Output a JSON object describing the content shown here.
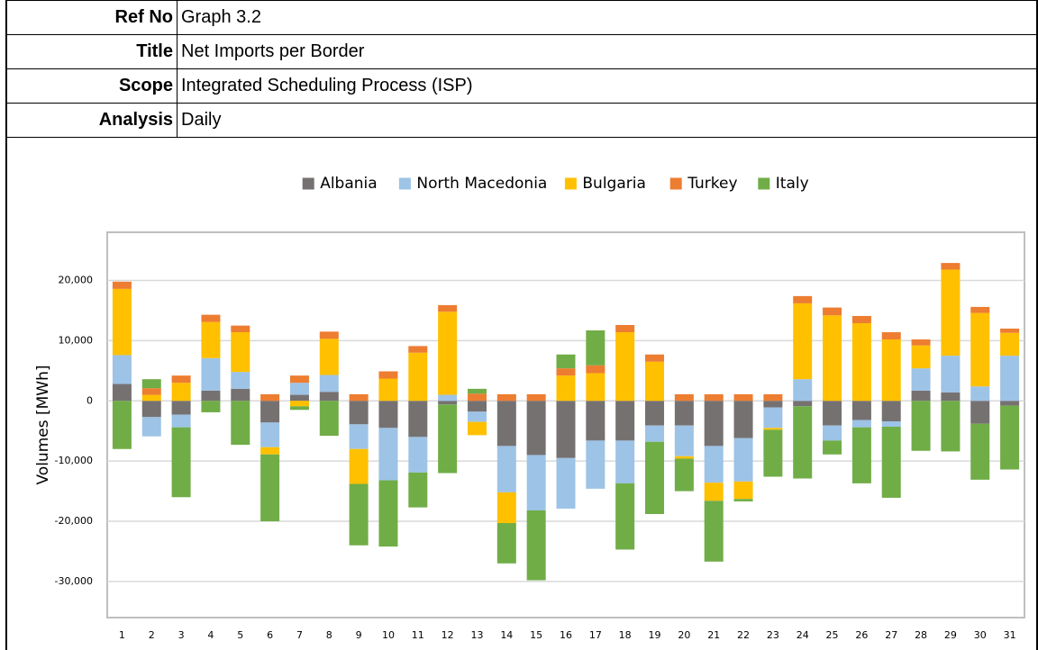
{
  "header": {
    "rows": [
      {
        "label": "Ref No",
        "value": "Graph 3.2"
      },
      {
        "label": "Title",
        "value": "Net Imports per Border"
      },
      {
        "label": "Scope",
        "value": "Integrated Scheduling Process (ISP)"
      },
      {
        "label": "Analysis",
        "value": "Daily"
      }
    ]
  },
  "chart_data": {
    "type": "stacked_bar",
    "y_label": "Volumes [MWh]",
    "categories": [
      "1",
      "2",
      "3",
      "4",
      "5",
      "6",
      "7",
      "8",
      "9",
      "10",
      "11",
      "12",
      "13",
      "14",
      "15",
      "16",
      "17",
      "18",
      "19",
      "20",
      "21",
      "22",
      "23",
      "24",
      "25",
      "26",
      "27",
      "28",
      "29",
      "30",
      "31"
    ],
    "series": [
      {
        "name": "Albania",
        "color": "#767171",
        "values": [
          2800,
          -2700,
          -2300,
          1700,
          2000,
          -3600,
          1000,
          1500,
          -3900,
          -4500,
          -6000,
          -600,
          -1800,
          -7500,
          -9000,
          -9500,
          -6600,
          -6600,
          -4100,
          -4100,
          -7500,
          -6200,
          -1100,
          -900,
          -4100,
          -3200,
          -3400,
          1700,
          1400,
          -3800,
          -800
        ]
      },
      {
        "name": "North Macedonia",
        "color": "#9dc3e6",
        "values": [
          4800,
          -3200,
          -2100,
          5400,
          2800,
          -4100,
          2000,
          2800,
          -4100,
          -8700,
          -5900,
          1000,
          -1700,
          -7700,
          -9200,
          -8400,
          -8000,
          -7100,
          -2700,
          -5100,
          -6100,
          -7200,
          -3400,
          3600,
          -2500,
          -1200,
          -900,
          3700,
          6100,
          2400,
          7500
        ]
      },
      {
        "name": "Bulgaria",
        "color": "#ffc000",
        "values": [
          11000,
          1000,
          3000,
          6000,
          6600,
          -1200,
          -900,
          6000,
          -5800,
          3700,
          8000,
          13800,
          -2200,
          -5100,
          0,
          4200,
          4600,
          11400,
          6500,
          -400,
          -3000,
          -2900,
          -300,
          12600,
          14200,
          12900,
          10200,
          3800,
          14300,
          12200,
          3800
        ]
      },
      {
        "name": "Turkey",
        "color": "#ed7d31",
        "values": [
          1200,
          1100,
          1200,
          1200,
          1100,
          1100,
          1200,
          1200,
          1100,
          1200,
          1100,
          1100,
          1200,
          1100,
          1100,
          1200,
          1300,
          1200,
          1200,
          1100,
          1100,
          1100,
          1100,
          1200,
          1300,
          1200,
          1200,
          1000,
          1100,
          1000,
          700
        ]
      },
      {
        "name": "Italy",
        "color": "#70ad47",
        "values": [
          -8000,
          1500,
          -11600,
          -1900,
          -7300,
          -11100,
          -600,
          -5800,
          -10200,
          -11000,
          -5800,
          -11400,
          800,
          -6700,
          -11600,
          2300,
          5800,
          -11000,
          -12000,
          -5400,
          -10100,
          -400,
          -7800,
          -12000,
          -2300,
          -9300,
          -11800,
          -8300,
          -8400,
          -9300,
          -10600
        ]
      }
    ],
    "ylim": [
      -36000,
      28000
    ],
    "yticks": [
      {
        "value": -30000,
        "label": "-30,000"
      },
      {
        "value": -20000,
        "label": "-20,000"
      },
      {
        "value": -10000,
        "label": "-10,000"
      },
      0,
      {
        "value": 10000,
        "label": "10,000"
      },
      {
        "value": 20000,
        "label": "20,000"
      }
    ],
    "grid": true,
    "legend": "top"
  }
}
